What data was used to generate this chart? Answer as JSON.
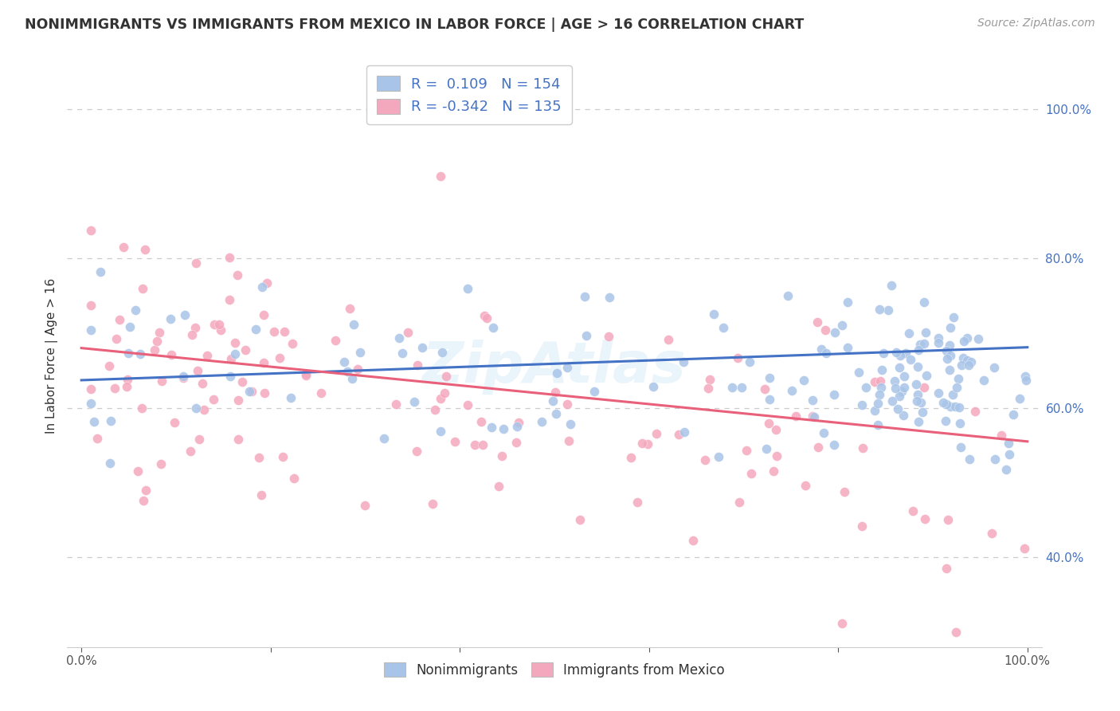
{
  "title": "NONIMMIGRANTS VS IMMIGRANTS FROM MEXICO IN LABOR FORCE | AGE > 16 CORRELATION CHART",
  "source": "Source: ZipAtlas.com",
  "ylabel": "In Labor Force | Age > 16",
  "blue_R": 0.109,
  "blue_N": 154,
  "pink_R": -0.342,
  "pink_N": 135,
  "blue_color": "#a8c4e8",
  "pink_color": "#f4a8be",
  "blue_line_color": "#4472c4",
  "pink_line_color": "#e8607a",
  "legend_text_color": "#4472c4",
  "background_color": "#ffffff",
  "grid_color": "#cccccc",
  "title_color": "#333333",
  "source_color": "#999999",
  "ylim_low": 0.28,
  "ylim_high": 1.06,
  "xlim_low": -0.015,
  "xlim_high": 1.015
}
